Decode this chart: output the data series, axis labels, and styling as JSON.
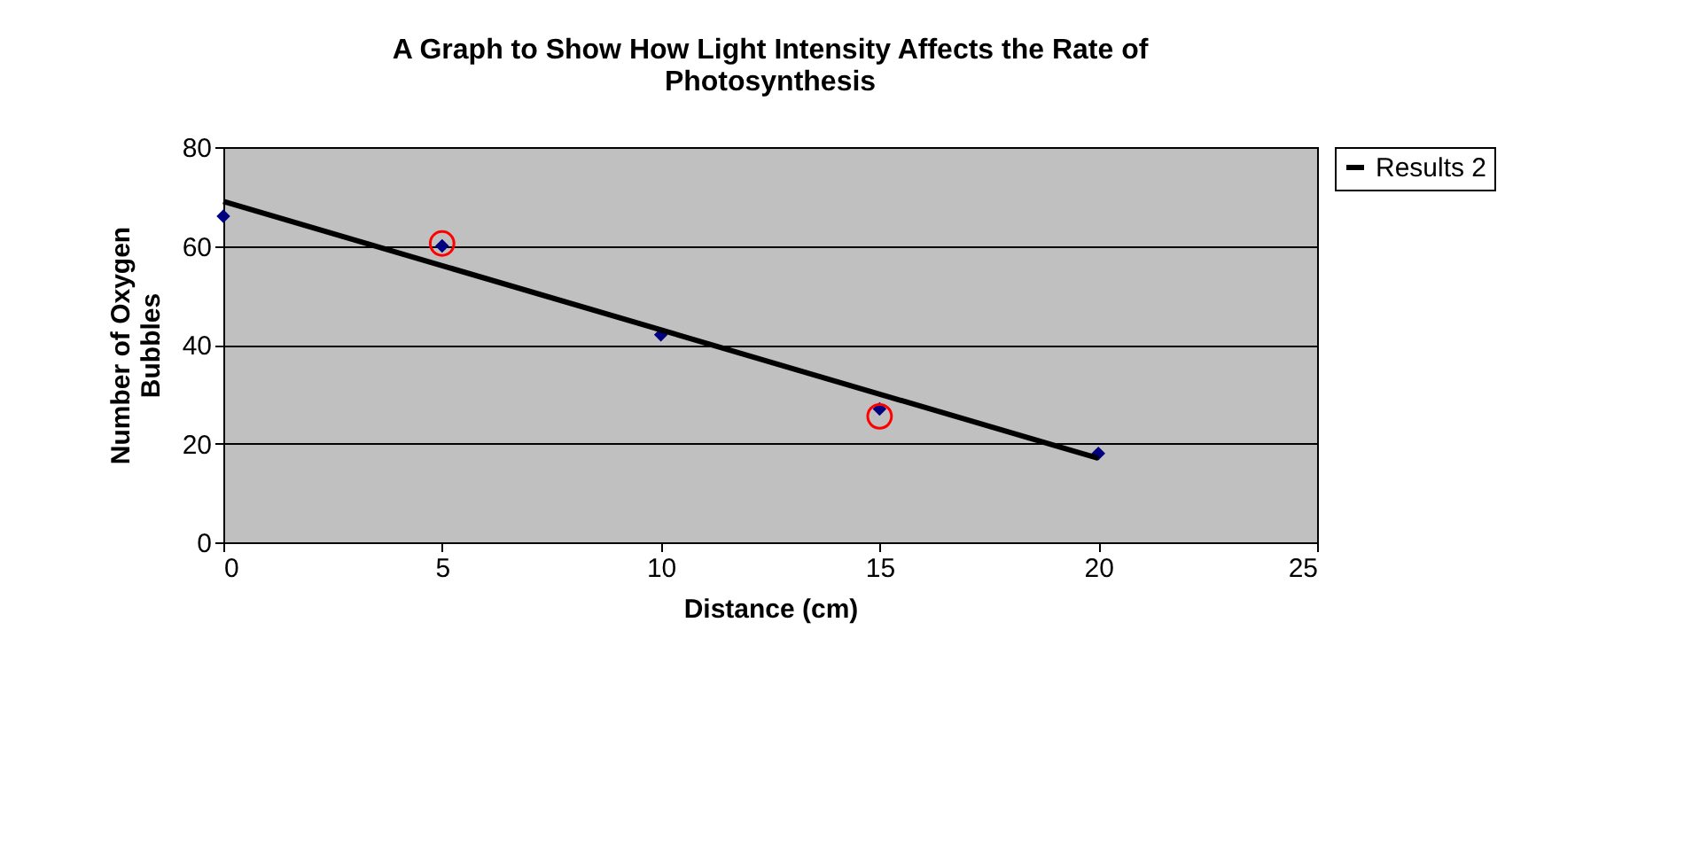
{
  "chart_data": {
    "type": "scatter",
    "title": "A Graph to Show How Light Intensity Affects the Rate of Photosynthesis",
    "xlabel": "Distance (cm)",
    "ylabel": "Number of Oxygen Bubbles",
    "x": [
      0,
      5,
      10,
      15,
      20
    ],
    "series": [
      {
        "color": "#000080",
        "marker": "diamond",
        "values": [
          66,
          60,
          42,
          27,
          18
        ]
      },
      {
        "type": "line",
        "name": "Results 2",
        "color": "#000000",
        "x": [
          0,
          20
        ],
        "values": [
          69,
          17
        ]
      },
      {
        "type": "scatter",
        "color": "#ff0000",
        "marker": "circle",
        "x": [
          5,
          15
        ],
        "values": [
          60.5,
          25.5
        ]
      }
    ],
    "xlim": [
      0,
      25
    ],
    "xticks": [
      0,
      5,
      10,
      15,
      20,
      25
    ],
    "ylim": [
      0,
      80
    ],
    "yticks": [
      0,
      20,
      40,
      60,
      80
    ],
    "grid": "y",
    "legend": "right"
  }
}
